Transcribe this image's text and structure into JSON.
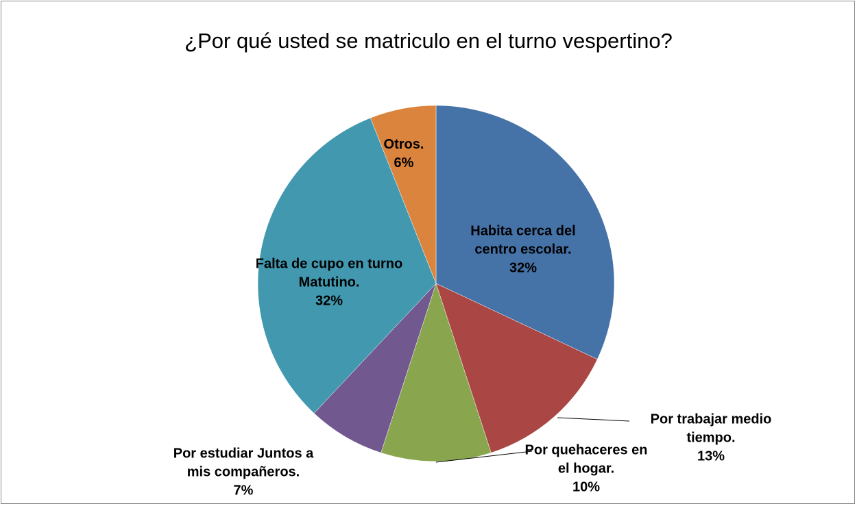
{
  "chart_data": {
    "type": "pie",
    "title": "¿Por qué usted se matriculo en el turno vespertino?",
    "categories": [
      "Habita cerca del centro escolar.",
      "Por trabajar medio tiempo.",
      "Por quehaceres en el hogar.",
      "Por estudiar Juntos a mis compañeros.",
      "Falta de cupo en turno Matutino.",
      "Otros."
    ],
    "values": [
      32,
      13,
      10,
      7,
      32,
      6
    ],
    "value_labels": [
      "32%",
      "13%",
      "10%",
      "7%",
      "32%",
      "6%"
    ],
    "colors": [
      "#4572a7",
      "#aa4643",
      "#89a54e",
      "#71588f",
      "#4198af",
      "#db843d"
    ]
  }
}
